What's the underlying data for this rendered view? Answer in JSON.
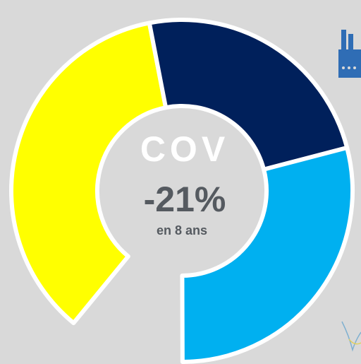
{
  "chart_data": {
    "type": "donut",
    "title": "COV",
    "center_value": "-21%",
    "center_note": "en 8 ans",
    "categories": [
      null,
      null,
      null
    ],
    "values": [
      36,
      24,
      29
    ],
    "colors": [
      "#ffff00",
      "#00205b",
      "#00b0f0"
    ]
  }
}
